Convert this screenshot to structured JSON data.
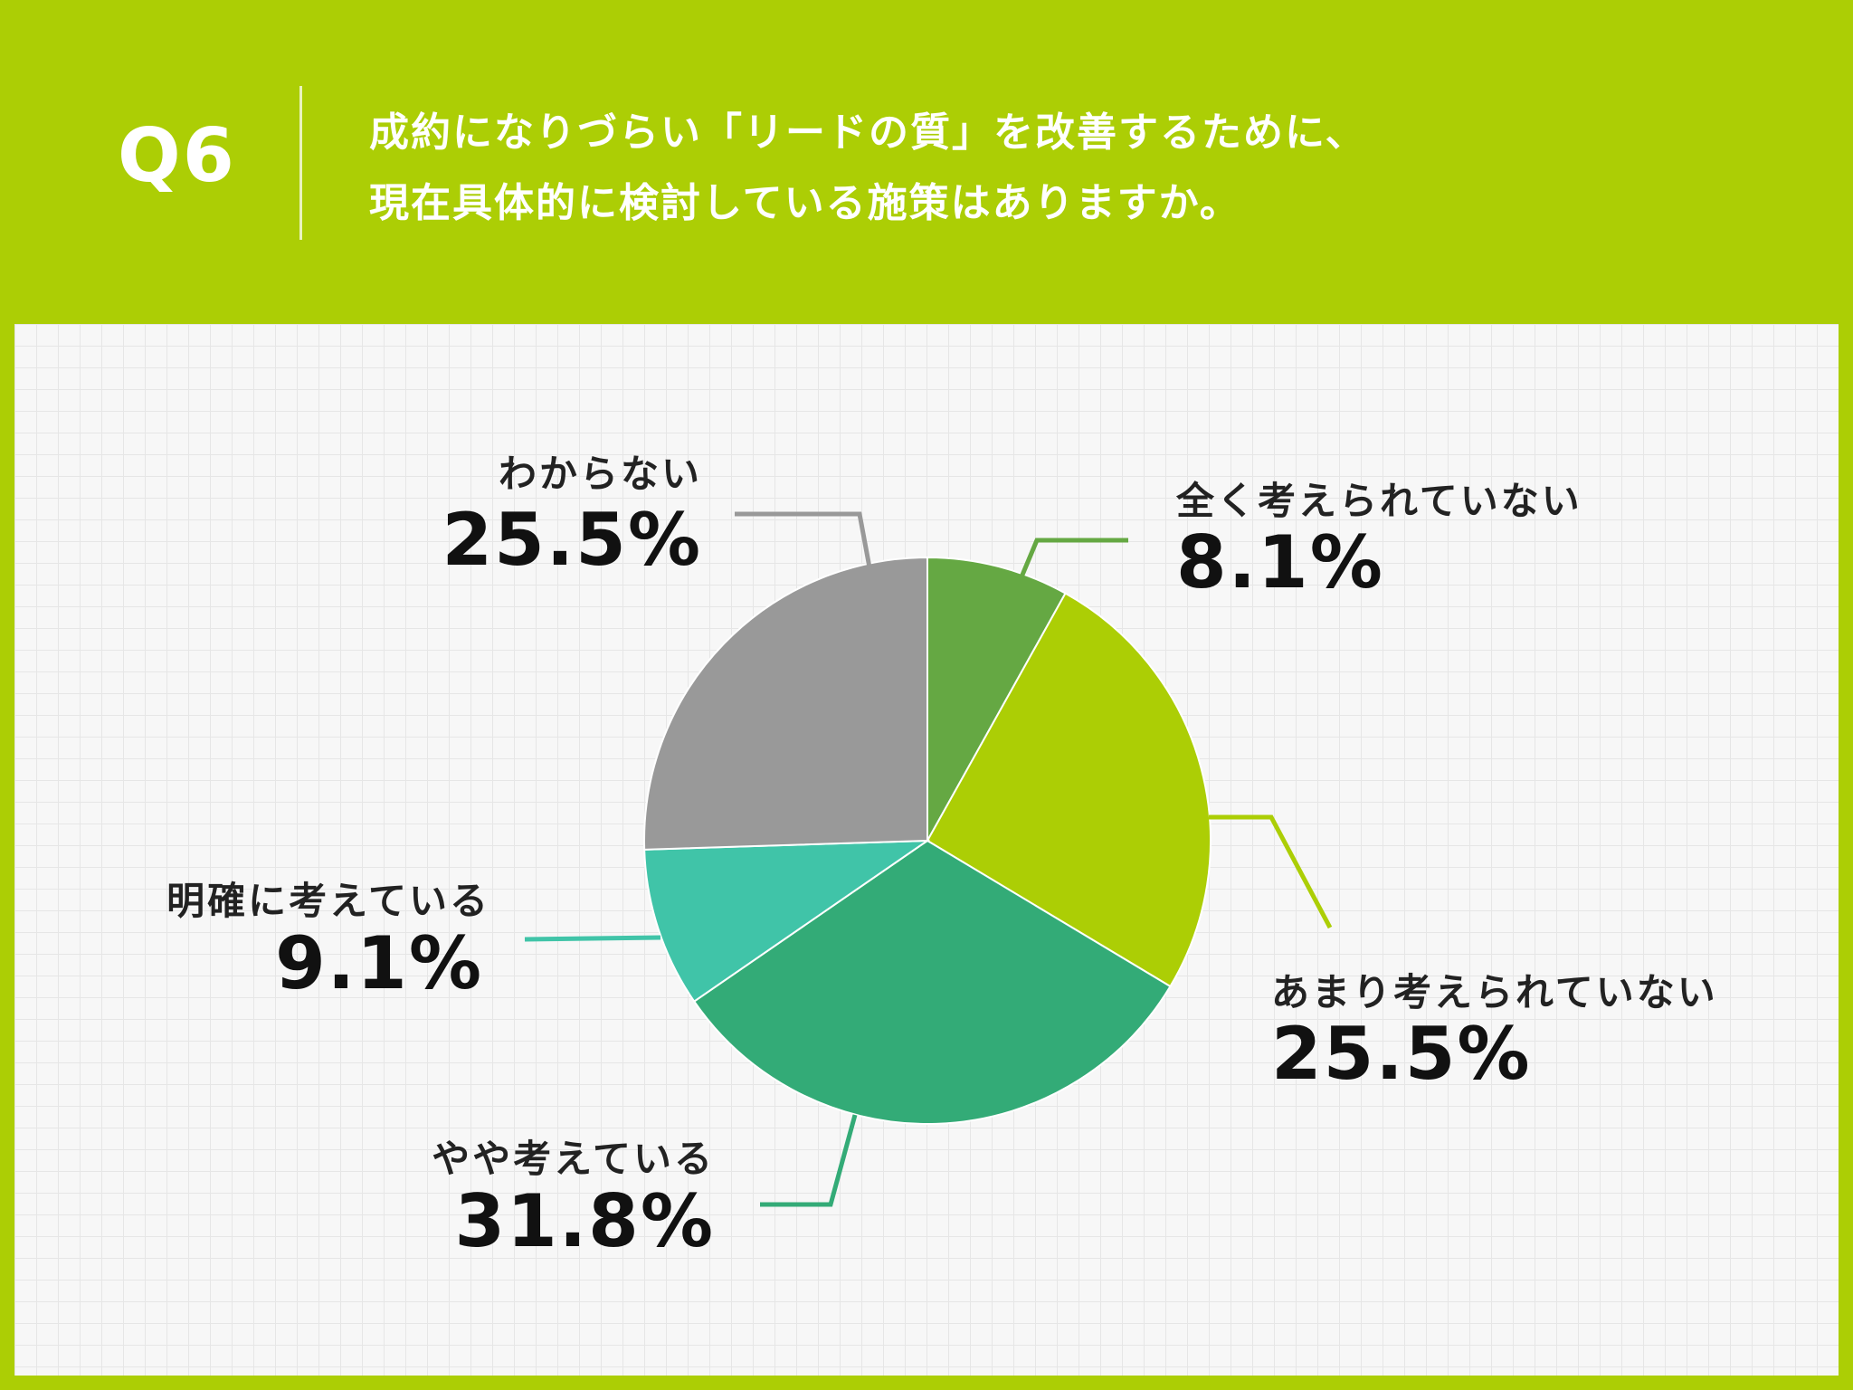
{
  "header": {
    "q_label": "Q6",
    "question_line1": "成約になりづらい「リードの質」を改善するために、",
    "question_line2": "現在具体的に検討している施策はありますか。"
  },
  "colors": {
    "header_bg": "#acce05",
    "panel_bg": "#f7f7f7"
  },
  "chart_data": {
    "type": "pie",
    "title": "",
    "start_angle_deg": 0,
    "direction": "clockwise",
    "slices": [
      {
        "label": "全く考えられていない",
        "value": 8.1,
        "value_label": "8.1%",
        "color": "#65a843"
      },
      {
        "label": "あまり考えられていない",
        "value": 25.5,
        "value_label": "25.5%",
        "color": "#acce05"
      },
      {
        "label": "やや考えている",
        "value": 31.8,
        "value_label": "31.8%",
        "color": "#33ab77"
      },
      {
        "label": "明確に考えている",
        "value": 9.1,
        "value_label": "9.1%",
        "color": "#40c4a8"
      },
      {
        "label": "わからない",
        "value": 25.5,
        "value_label": "25.5%",
        "color": "#999999"
      }
    ]
  }
}
